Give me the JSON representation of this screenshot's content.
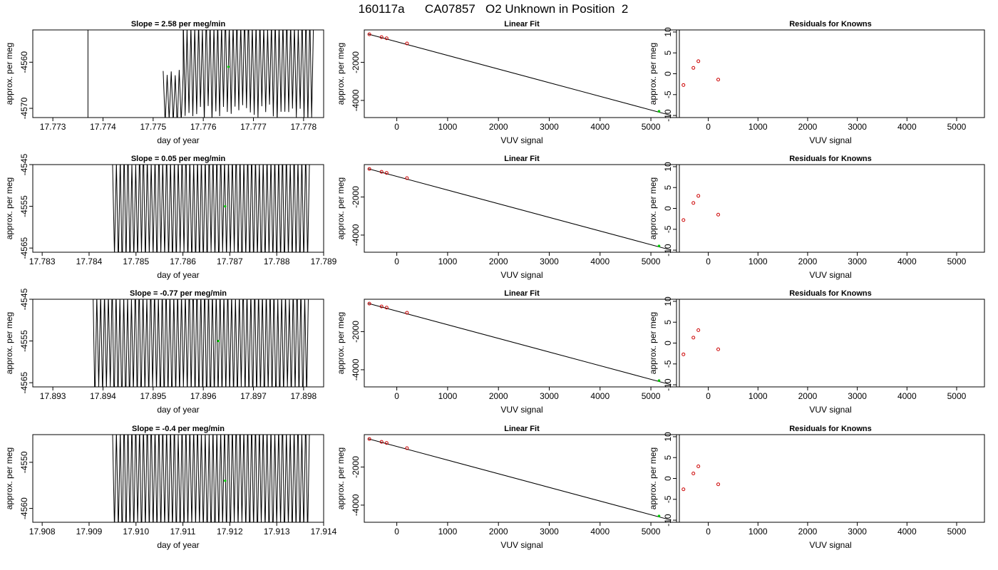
{
  "figure_title": "160117a      CA07857   O2 Unknown in Position  2",
  "colors": {
    "fit_line": "#000000",
    "known_point": "#cc0000",
    "unknown_point": "#00cc00",
    "trace": "#000000"
  },
  "chart_data": [
    {
      "type": "line",
      "title": "Slope =  2.58  per meg/min",
      "xlabel": "day of year",
      "ylabel": "approx. per meg",
      "xlim": [
        17.7726,
        17.7784
      ],
      "ylim": [
        -4572,
        -4553
      ],
      "xticks": [
        17.773,
        17.774,
        17.775,
        17.776,
        17.777,
        17.778
      ],
      "xtick_labels": [
        "17.773",
        "17.774",
        "17.775",
        "17.776",
        "17.777",
        "17.778"
      ],
      "yticks": [
        -4570,
        -4560
      ],
      "ytick_labels": [
        "-4570",
        "-4560"
      ],
      "series": [
        {
          "x_start": 17.7752,
          "x_end": 17.7782,
          "y_low": -4572,
          "y_high": -4553,
          "segments": [
            {
              "from": 17.7752,
              "to": 17.7756,
              "low": -4572,
              "high": -4563
            },
            {
              "from": 17.7756,
              "to": 17.7782,
              "low": -4569,
              "high": -4553
            }
          ],
          "vertical_line_x": 17.7737
        }
      ],
      "unknown_point": {
        "x": 17.7765,
        "y": -4561
      }
    },
    {
      "type": "scatter",
      "title": "Linear Fit",
      "xlabel": "VUV signal",
      "ylabel": "approx. per meg",
      "xlim": [
        -640,
        5560
      ],
      "ylim": [
        -4900,
        -300
      ],
      "xticks": [
        0,
        1000,
        2000,
        3000,
        4000,
        5000
      ],
      "xtick_labels": [
        "0",
        "1000",
        "2000",
        "3000",
        "4000",
        "5000"
      ],
      "yticks": [
        -4000,
        -2000
      ],
      "ytick_labels": [
        "-4000",
        "-2000"
      ],
      "fit_line": {
        "x": [
          -560,
          5400
        ],
        "y": [
          -520,
          -4790
        ]
      },
      "knowns": {
        "x": [
          -540,
          -300,
          -200,
          200
        ],
        "y": [
          -530,
          -680,
          -740,
          -1010
        ]
      },
      "unknown_point": {
        "x": 5160,
        "y": -4570
      }
    },
    {
      "type": "scatter",
      "title": "Residuals for Knowns",
      "xlabel": "VUV signal",
      "ylabel": "approx. per meg",
      "xlim": [
        -640,
        5560
      ],
      "ylim": [
        -10.5,
        10.5
      ],
      "xticks": [
        0,
        1000,
        2000,
        3000,
        4000,
        5000
      ],
      "xtick_labels": [
        "0",
        "1000",
        "2000",
        "3000",
        "4000",
        "5000"
      ],
      "yticks": [
        -10,
        -5,
        0,
        5,
        10
      ],
      "ytick_labels": [
        "-10",
        "-5",
        "0",
        "5",
        "10"
      ],
      "x": [
        -500,
        -300,
        -200,
        200
      ],
      "y": [
        -2.7,
        1.4,
        3.0,
        -1.4
      ]
    },
    {
      "type": "line",
      "title": "Slope =  0.05  per meg/min",
      "xlabel": "day of year",
      "ylabel": "approx. per meg",
      "xlim": [
        17.7828,
        17.789
      ],
      "ylim": [
        -4566,
        -4545
      ],
      "xticks": [
        17.783,
        17.784,
        17.785,
        17.786,
        17.787,
        17.788,
        17.789
      ],
      "xtick_labels": [
        "17.783",
        "17.784",
        "17.785",
        "17.786",
        "17.787",
        "17.788",
        "17.789"
      ],
      "yticks": [
        -4565,
        -4555,
        -4545
      ],
      "ytick_labels": [
        "-4565",
        "-4555",
        "-4545"
      ],
      "series": [
        {
          "x_start": 17.7845,
          "x_end": 17.7887,
          "y_low": -4566,
          "y_high": -4545,
          "segments": [
            {
              "from": 17.7845,
              "to": 17.7887,
              "low": -4566,
              "high": -4545
            }
          ]
        }
      ],
      "unknown_point": {
        "x": 17.7869,
        "y": -4555
      }
    },
    {
      "type": "scatter",
      "title": "Linear Fit",
      "xlabel": "VUV signal",
      "ylabel": "approx. per meg",
      "xlim": [
        -640,
        5560
      ],
      "ylim": [
        -4900,
        -300
      ],
      "xticks": [
        0,
        1000,
        2000,
        3000,
        4000,
        5000
      ],
      "xtick_labels": [
        "0",
        "1000",
        "2000",
        "3000",
        "4000",
        "5000"
      ],
      "yticks": [
        -4000,
        -2000
      ],
      "ytick_labels": [
        "-4000",
        "-2000"
      ],
      "fit_line": {
        "x": [
          -560,
          5400
        ],
        "y": [
          -520,
          -4790
        ]
      },
      "knowns": {
        "x": [
          -540,
          -300,
          -200,
          200
        ],
        "y": [
          -530,
          -680,
          -740,
          -1010
        ]
      },
      "unknown_point": {
        "x": 5160,
        "y": -4570
      }
    },
    {
      "type": "scatter",
      "title": "Residuals for Knowns",
      "xlabel": "VUV signal",
      "ylabel": "approx. per meg",
      "xlim": [
        -640,
        5560
      ],
      "ylim": [
        -10.5,
        10.5
      ],
      "xticks": [
        0,
        1000,
        2000,
        3000,
        4000,
        5000
      ],
      "xtick_labels": [
        "0",
        "1000",
        "2000",
        "3000",
        "4000",
        "5000"
      ],
      "yticks": [
        -10,
        -5,
        0,
        5,
        10
      ],
      "ytick_labels": [
        "-10",
        "-5",
        "0",
        "5",
        "10"
      ],
      "x": [
        -500,
        -300,
        -200,
        200
      ],
      "y": [
        -2.8,
        1.3,
        3.0,
        -1.5
      ]
    },
    {
      "type": "line",
      "title": "Slope =  -0.77  per meg/min",
      "xlabel": "day of year",
      "ylabel": "approx. per meg",
      "xlim": [
        17.8926,
        17.8984
      ],
      "ylim": [
        -4566,
        -4545
      ],
      "xticks": [
        17.893,
        17.894,
        17.895,
        17.896,
        17.897,
        17.898
      ],
      "xtick_labels": [
        "17.893",
        "17.894",
        "17.895",
        "17.896",
        "17.897",
        "17.898"
      ],
      "yticks": [
        -4565,
        -4555,
        -4545
      ],
      "ytick_labels": [
        "-4565",
        "-4555",
        "-4545"
      ],
      "series": [
        {
          "x_start": 17.8938,
          "x_end": 17.8981,
          "y_low": -4566,
          "y_high": -4545,
          "segments": [
            {
              "from": 17.8938,
              "to": 17.8981,
              "low": -4566,
              "high": -4545
            }
          ]
        }
      ],
      "unknown_point": {
        "x": 17.8963,
        "y": -4555
      }
    },
    {
      "type": "scatter",
      "title": "Linear Fit",
      "xlabel": "VUV signal",
      "ylabel": "approx. per meg",
      "xlim": [
        -640,
        5560
      ],
      "ylim": [
        -4900,
        -300
      ],
      "xticks": [
        0,
        1000,
        2000,
        3000,
        4000,
        5000
      ],
      "xtick_labels": [
        "0",
        "1000",
        "2000",
        "3000",
        "4000",
        "5000"
      ],
      "yticks": [
        -4000,
        -2000
      ],
      "ytick_labels": [
        "-4000",
        "-2000"
      ],
      "fit_line": {
        "x": [
          -560,
          5400
        ],
        "y": [
          -520,
          -4790
        ]
      },
      "knowns": {
        "x": [
          -540,
          -300,
          -200,
          200
        ],
        "y": [
          -530,
          -680,
          -740,
          -1010
        ]
      },
      "unknown_point": {
        "x": 5160,
        "y": -4570
      }
    },
    {
      "type": "scatter",
      "title": "Residuals for Knowns",
      "xlabel": "VUV signal",
      "ylabel": "approx. per meg",
      "xlim": [
        -640,
        5560
      ],
      "ylim": [
        -10.5,
        10.5
      ],
      "xticks": [
        0,
        1000,
        2000,
        3000,
        4000,
        5000
      ],
      "xtick_labels": [
        "0",
        "1000",
        "2000",
        "3000",
        "4000",
        "5000"
      ],
      "yticks": [
        -10,
        -5,
        0,
        5,
        10
      ],
      "ytick_labels": [
        "-10",
        "-5",
        "0",
        "5",
        "10"
      ],
      "x": [
        -500,
        -300,
        -200,
        200
      ],
      "y": [
        -2.7,
        1.3,
        3.1,
        -1.5
      ]
    },
    {
      "type": "line",
      "title": "Slope =  -0.4  per meg/min",
      "xlabel": "day of year",
      "ylabel": "approx. per meg",
      "xlim": [
        17.9078,
        17.914
      ],
      "ylim": [
        -4563,
        -4544
      ],
      "xticks": [
        17.908,
        17.909,
        17.91,
        17.911,
        17.912,
        17.913,
        17.914
      ],
      "xtick_labels": [
        "17.908",
        "17.909",
        "17.910",
        "17.911",
        "17.912",
        "17.913",
        "17.914"
      ],
      "yticks": [
        -4560,
        -4550
      ],
      "ytick_labels": [
        "-4560",
        "-4550"
      ],
      "series": [
        {
          "x_start": 17.9095,
          "x_end": 17.9137,
          "y_low": -4563,
          "y_high": -4544,
          "segments": [
            {
              "from": 17.9095,
              "to": 17.9137,
              "low": -4563,
              "high": -4544
            }
          ]
        }
      ],
      "unknown_point": {
        "x": 17.9119,
        "y": -4554
      }
    },
    {
      "type": "scatter",
      "title": "Linear Fit",
      "xlabel": "VUV signal",
      "ylabel": "approx. per meg",
      "xlim": [
        -640,
        5560
      ],
      "ylim": [
        -4900,
        -300
      ],
      "xticks": [
        0,
        1000,
        2000,
        3000,
        4000,
        5000
      ],
      "xtick_labels": [
        "0",
        "1000",
        "2000",
        "3000",
        "4000",
        "5000"
      ],
      "yticks": [
        -4000,
        -2000
      ],
      "ytick_labels": [
        "-4000",
        "-2000"
      ],
      "fit_line": {
        "x": [
          -560,
          5400
        ],
        "y": [
          -520,
          -4790
        ]
      },
      "knowns": {
        "x": [
          -540,
          -300,
          -200,
          200
        ],
        "y": [
          -530,
          -680,
          -740,
          -1010
        ]
      },
      "unknown_point": {
        "x": 5160,
        "y": -4570
      }
    },
    {
      "type": "scatter",
      "title": "Residuals for Knowns",
      "xlabel": "VUV signal",
      "ylabel": "approx. per meg",
      "xlim": [
        -640,
        5560
      ],
      "ylim": [
        -10.5,
        10.5
      ],
      "xticks": [
        0,
        1000,
        2000,
        3000,
        4000,
        5000
      ],
      "xtick_labels": [
        "0",
        "1000",
        "2000",
        "3000",
        "4000",
        "5000"
      ],
      "yticks": [
        -10,
        -5,
        0,
        5,
        10
      ],
      "ytick_labels": [
        "-10",
        "-5",
        "0",
        "5",
        "10"
      ],
      "x": [
        -500,
        -300,
        -200,
        200
      ],
      "y": [
        -2.6,
        1.2,
        2.9,
        -1.4
      ]
    }
  ]
}
